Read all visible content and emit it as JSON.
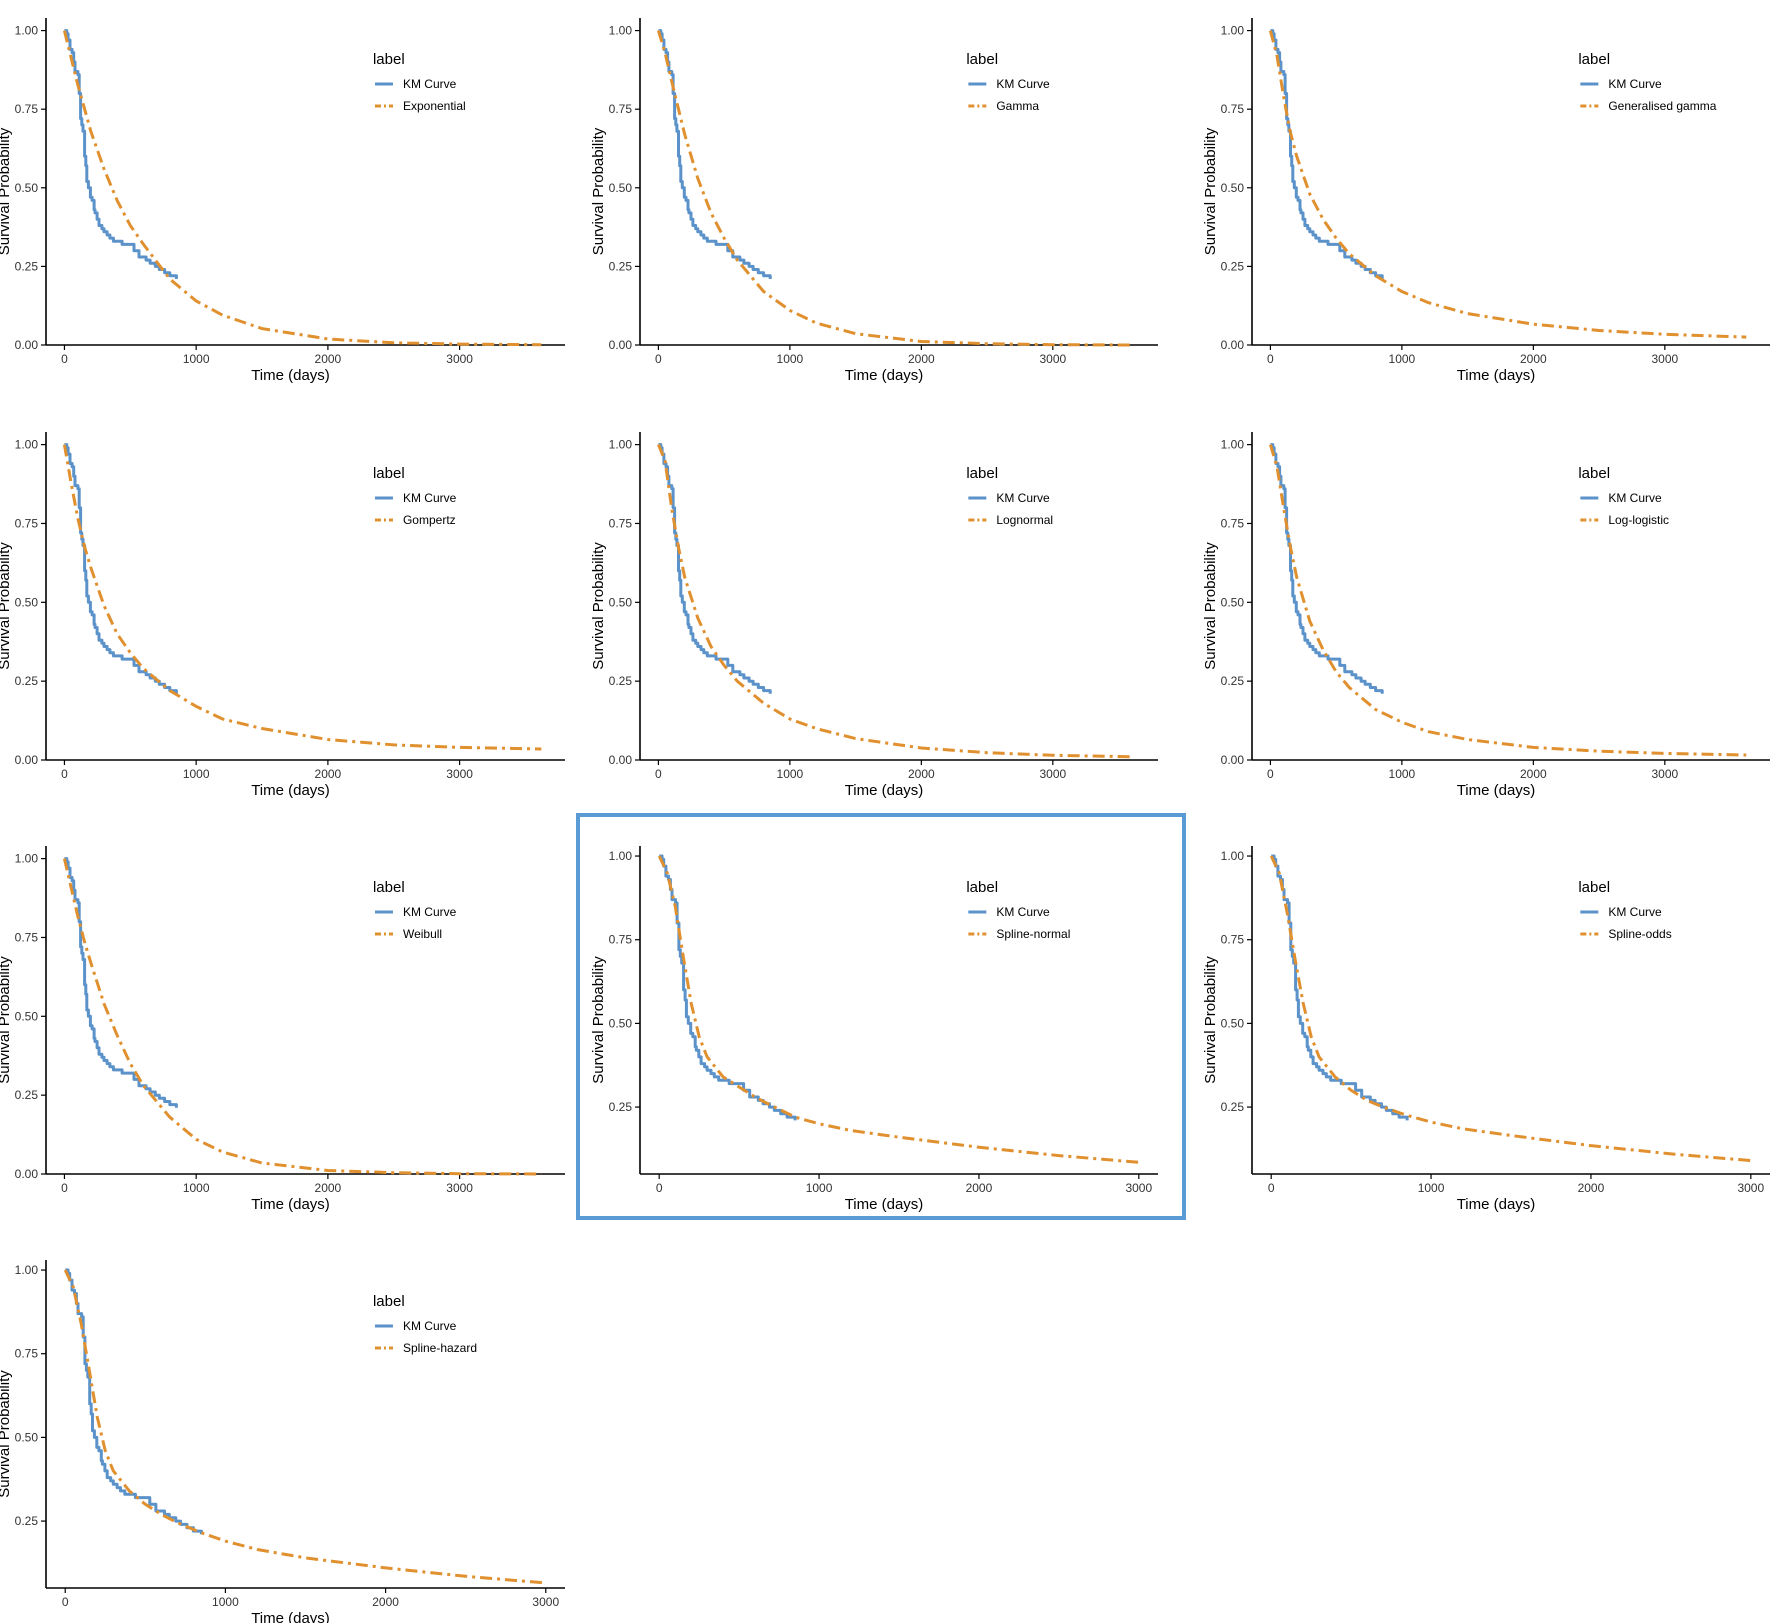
{
  "colors": {
    "km": "#5b92c9",
    "fit": "#e0902e",
    "highlight": "#5b9bd5"
  },
  "common": {
    "ylabel": "Survival Probability",
    "xlabel": "Time (days)",
    "legend_title": "label",
    "km_label": "KM Curve"
  },
  "km_curve": {
    "x": [
      0,
      18,
      28,
      42,
      58,
      70,
      80,
      102,
      112,
      123,
      132,
      141,
      153,
      162,
      170,
      182,
      197,
      210,
      225,
      232,
      248,
      262,
      284,
      300,
      324,
      345,
      372,
      396,
      438,
      480,
      528,
      566,
      620,
      650,
      690,
      720,
      760,
      800,
      850
    ],
    "y": [
      1.0,
      0.99,
      0.97,
      0.94,
      0.93,
      0.9,
      0.87,
      0.86,
      0.8,
      0.72,
      0.7,
      0.68,
      0.6,
      0.57,
      0.52,
      0.5,
      0.47,
      0.46,
      0.43,
      0.42,
      0.4,
      0.38,
      0.37,
      0.36,
      0.35,
      0.34,
      0.33,
      0.33,
      0.32,
      0.32,
      0.3,
      0.28,
      0.27,
      0.26,
      0.25,
      0.24,
      0.23,
      0.22,
      0.21
    ]
  },
  "chart_data": [
    {
      "type": "line",
      "model": "Exponential",
      "xlabel": "Time (days)",
      "ylabel": "Survival Probability",
      "xlim": [
        -140,
        3800
      ],
      "xticks": [
        0,
        1000,
        2000,
        3000
      ],
      "ylim": [
        0,
        1.04
      ],
      "yticks": [
        0,
        0.25,
        0.5,
        0.75,
        1.0
      ],
      "ytick_labels": [
        "0.00",
        "0.25",
        "0.50",
        "0.75",
        "1.00"
      ],
      "legend_title": "label",
      "legend_position": "top-right",
      "series": [
        {
          "name": "KM Curve",
          "ref": "km_curve"
        },
        {
          "name": "Exponential",
          "x": [
            0,
            100,
            200,
            300,
            400,
            500,
            600,
            800,
            1000,
            1200,
            1500,
            2000,
            2500,
            3000,
            3620
          ],
          "y": [
            1.0,
            0.83,
            0.68,
            0.56,
            0.46,
            0.38,
            0.32,
            0.21,
            0.14,
            0.095,
            0.052,
            0.019,
            0.007,
            0.003,
            0.001
          ]
        }
      ]
    },
    {
      "type": "line",
      "model": "Gamma",
      "xlabel": "Time (days)",
      "ylabel": "Survival Probability",
      "xlim": [
        -140,
        3800
      ],
      "xticks": [
        0,
        1000,
        2000,
        3000
      ],
      "ylim": [
        0,
        1.04
      ],
      "yticks": [
        0,
        0.25,
        0.5,
        0.75,
        1.0
      ],
      "ytick_labels": [
        "0.00",
        "0.25",
        "0.50",
        "0.75",
        "1.00"
      ],
      "legend_title": "label",
      "legend_position": "top-right",
      "series": [
        {
          "name": "KM Curve",
          "ref": "km_curve"
        },
        {
          "name": "Gamma",
          "x": [
            0,
            50,
            100,
            200,
            300,
            400,
            500,
            600,
            800,
            1000,
            1200,
            1500,
            2000,
            2500,
            3000,
            3620
          ],
          "y": [
            1.0,
            0.93,
            0.84,
            0.67,
            0.53,
            0.42,
            0.34,
            0.27,
            0.17,
            0.11,
            0.07,
            0.036,
            0.011,
            0.004,
            0.001,
            0.0
          ]
        }
      ]
    },
    {
      "type": "line",
      "model": "Generalised gamma",
      "xlabel": "Time (days)",
      "ylabel": "Survival Probability",
      "xlim": [
        -140,
        3800
      ],
      "xticks": [
        0,
        1000,
        2000,
        3000
      ],
      "ylim": [
        0,
        1.04
      ],
      "yticks": [
        0,
        0.25,
        0.5,
        0.75,
        1.0
      ],
      "ytick_labels": [
        "0.00",
        "0.25",
        "0.50",
        "0.75",
        "1.00"
      ],
      "legend_title": "label",
      "legend_position": "top-right",
      "series": [
        {
          "name": "KM Curve",
          "ref": "km_curve"
        },
        {
          "name": "Generalised gamma",
          "x": [
            0,
            50,
            100,
            150,
            200,
            300,
            400,
            500,
            600,
            800,
            1000,
            1200,
            1500,
            2000,
            2500,
            3000,
            3620
          ],
          "y": [
            1.0,
            0.92,
            0.79,
            0.68,
            0.6,
            0.48,
            0.4,
            0.34,
            0.29,
            0.22,
            0.17,
            0.135,
            0.1,
            0.066,
            0.046,
            0.034,
            0.025
          ]
        }
      ]
    },
    {
      "type": "line",
      "model": "Gompertz",
      "xlabel": "Time (days)",
      "ylabel": "Survival Probability",
      "xlim": [
        -140,
        3800
      ],
      "xticks": [
        0,
        1000,
        2000,
        3000
      ],
      "ylim": [
        0,
        1.04
      ],
      "yticks": [
        0,
        0.25,
        0.5,
        0.75,
        1.0
      ],
      "ytick_labels": [
        "0.00",
        "0.25",
        "0.50",
        "0.75",
        "1.00"
      ],
      "legend_title": "label",
      "legend_position": "top-right",
      "series": [
        {
          "name": "KM Curve",
          "ref": "km_curve"
        },
        {
          "name": "Gompertz",
          "x": [
            0,
            50,
            100,
            150,
            200,
            300,
            400,
            500,
            600,
            800,
            1000,
            1200,
            1500,
            2000,
            2500,
            3000,
            3620
          ],
          "y": [
            1.0,
            0.88,
            0.77,
            0.68,
            0.61,
            0.49,
            0.4,
            0.34,
            0.29,
            0.22,
            0.17,
            0.13,
            0.1,
            0.065,
            0.048,
            0.04,
            0.035
          ]
        }
      ]
    },
    {
      "type": "line",
      "model": "Lognormal",
      "xlabel": "Time (days)",
      "ylabel": "Survival Probability",
      "xlim": [
        -140,
        3800
      ],
      "xticks": [
        0,
        1000,
        2000,
        3000
      ],
      "ylim": [
        0,
        1.04
      ],
      "yticks": [
        0,
        0.25,
        0.5,
        0.75,
        1.0
      ],
      "ytick_labels": [
        "0.00",
        "0.25",
        "0.50",
        "0.75",
        "1.00"
      ],
      "legend_title": "label",
      "legend_position": "top-right",
      "series": [
        {
          "name": "KM Curve",
          "ref": "km_curve"
        },
        {
          "name": "Lognormal",
          "x": [
            0,
            50,
            100,
            150,
            200,
            300,
            400,
            500,
            600,
            800,
            1000,
            1200,
            1500,
            2000,
            2500,
            3000,
            3620
          ],
          "y": [
            1.0,
            0.95,
            0.8,
            0.68,
            0.58,
            0.45,
            0.36,
            0.3,
            0.25,
            0.18,
            0.13,
            0.1,
            0.068,
            0.038,
            0.023,
            0.015,
            0.01
          ]
        }
      ]
    },
    {
      "type": "line",
      "model": "Log-logistic",
      "xlabel": "Time (days)",
      "ylabel": "Survival Probability",
      "xlim": [
        -140,
        3800
      ],
      "xticks": [
        0,
        1000,
        2000,
        3000
      ],
      "ylim": [
        0,
        1.04
      ],
      "yticks": [
        0,
        0.25,
        0.5,
        0.75,
        1.0
      ],
      "ytick_labels": [
        "0.00",
        "0.25",
        "0.50",
        "0.75",
        "1.00"
      ],
      "legend_title": "label",
      "legend_position": "top-right",
      "series": [
        {
          "name": "KM Curve",
          "ref": "km_curve"
        },
        {
          "name": "Log-logistic",
          "x": [
            0,
            50,
            100,
            150,
            200,
            300,
            400,
            500,
            600,
            800,
            1000,
            1200,
            1500,
            2000,
            2500,
            3000,
            3620
          ],
          "y": [
            1.0,
            0.93,
            0.8,
            0.68,
            0.58,
            0.44,
            0.35,
            0.28,
            0.23,
            0.16,
            0.12,
            0.09,
            0.065,
            0.04,
            0.028,
            0.021,
            0.016
          ]
        }
      ]
    },
    {
      "type": "line",
      "model": "Weibull",
      "xlabel": "Time (days)",
      "ylabel": "Survival Probability",
      "xlim": [
        -140,
        3800
      ],
      "xticks": [
        0,
        1000,
        2000,
        3000
      ],
      "ylim": [
        0,
        1.04
      ],
      "yticks": [
        0,
        0.25,
        0.5,
        0.75,
        1.0
      ],
      "ytick_labels": [
        "0.00",
        "0.25",
        "0.50",
        "0.75",
        "1.00"
      ],
      "legend_title": "label",
      "legend_position": "top-right",
      "series": [
        {
          "name": "KM Curve",
          "ref": "km_curve"
        },
        {
          "name": "Weibull",
          "x": [
            0,
            50,
            100,
            150,
            200,
            300,
            400,
            500,
            600,
            800,
            1000,
            1200,
            1500,
            2000,
            2500,
            3000,
            3620
          ],
          "y": [
            1.0,
            0.91,
            0.82,
            0.74,
            0.67,
            0.54,
            0.44,
            0.35,
            0.28,
            0.18,
            0.11,
            0.07,
            0.035,
            0.011,
            0.004,
            0.001,
            0.0
          ]
        }
      ]
    },
    {
      "type": "line",
      "model": "Spline-normal",
      "highlighted": true,
      "xlabel": "Time (days)",
      "ylabel": "Survival Probability",
      "xlim": [
        -120,
        3120
      ],
      "xticks": [
        0,
        1000,
        2000,
        3000
      ],
      "ylim": [
        0.05,
        1.03
      ],
      "yticks": [
        0.25,
        0.5,
        0.75,
        1.0
      ],
      "ytick_labels": [
        "0.25",
        "0.50",
        "0.75",
        "1.00"
      ],
      "legend_title": "label",
      "legend_position": "top-right",
      "series": [
        {
          "name": "KM Curve",
          "ref": "km_curve"
        },
        {
          "name": "Spline-normal",
          "x": [
            0,
            50,
            100,
            150,
            200,
            250,
            300,
            400,
            500,
            600,
            700,
            850,
            1000,
            1200,
            1500,
            2000,
            2500,
            3000
          ],
          "y": [
            1.0,
            0.95,
            0.85,
            0.7,
            0.56,
            0.46,
            0.4,
            0.34,
            0.31,
            0.28,
            0.255,
            0.22,
            0.2,
            0.18,
            0.16,
            0.13,
            0.105,
            0.085
          ]
        }
      ]
    },
    {
      "type": "line",
      "model": "Spline-odds",
      "xlabel": "Time (days)",
      "ylabel": "Survival Probability",
      "xlim": [
        -120,
        3120
      ],
      "xticks": [
        0,
        1000,
        2000,
        3000
      ],
      "ylim": [
        0.05,
        1.03
      ],
      "yticks": [
        0.25,
        0.5,
        0.75,
        1.0
      ],
      "ytick_labels": [
        "0.25",
        "0.50",
        "0.75",
        "1.00"
      ],
      "legend_title": "label",
      "legend_position": "top-right",
      "series": [
        {
          "name": "KM Curve",
          "ref": "km_curve"
        },
        {
          "name": "Spline-odds",
          "x": [
            0,
            50,
            100,
            150,
            200,
            250,
            300,
            400,
            500,
            600,
            700,
            850,
            1000,
            1200,
            1500,
            2000,
            2500,
            3000
          ],
          "y": [
            1.0,
            0.95,
            0.83,
            0.69,
            0.56,
            0.46,
            0.4,
            0.34,
            0.3,
            0.27,
            0.25,
            0.225,
            0.205,
            0.185,
            0.165,
            0.135,
            0.11,
            0.09
          ]
        }
      ]
    },
    {
      "type": "line",
      "model": "Spline-hazard",
      "xlabel": "Time (days)",
      "ylabel": "Survival Probability",
      "xlim": [
        -120,
        3120
      ],
      "xticks": [
        0,
        1000,
        2000,
        3000
      ],
      "ylim": [
        0.05,
        1.03
      ],
      "yticks": [
        0.25,
        0.5,
        0.75,
        1.0
      ],
      "ytick_labels": [
        "0.25",
        "0.50",
        "0.75",
        "1.00"
      ],
      "legend_title": "label",
      "legend_position": "top-right",
      "series": [
        {
          "name": "KM Curve",
          "ref": "km_curve"
        },
        {
          "name": "Spline-hazard",
          "x": [
            0,
            50,
            100,
            150,
            200,
            250,
            300,
            400,
            500,
            600,
            700,
            850,
            1000,
            1200,
            1500,
            2000,
            2500,
            3000
          ],
          "y": [
            1.0,
            0.95,
            0.84,
            0.7,
            0.56,
            0.46,
            0.4,
            0.34,
            0.3,
            0.27,
            0.245,
            0.215,
            0.19,
            0.165,
            0.14,
            0.11,
            0.085,
            0.065
          ]
        }
      ]
    }
  ]
}
